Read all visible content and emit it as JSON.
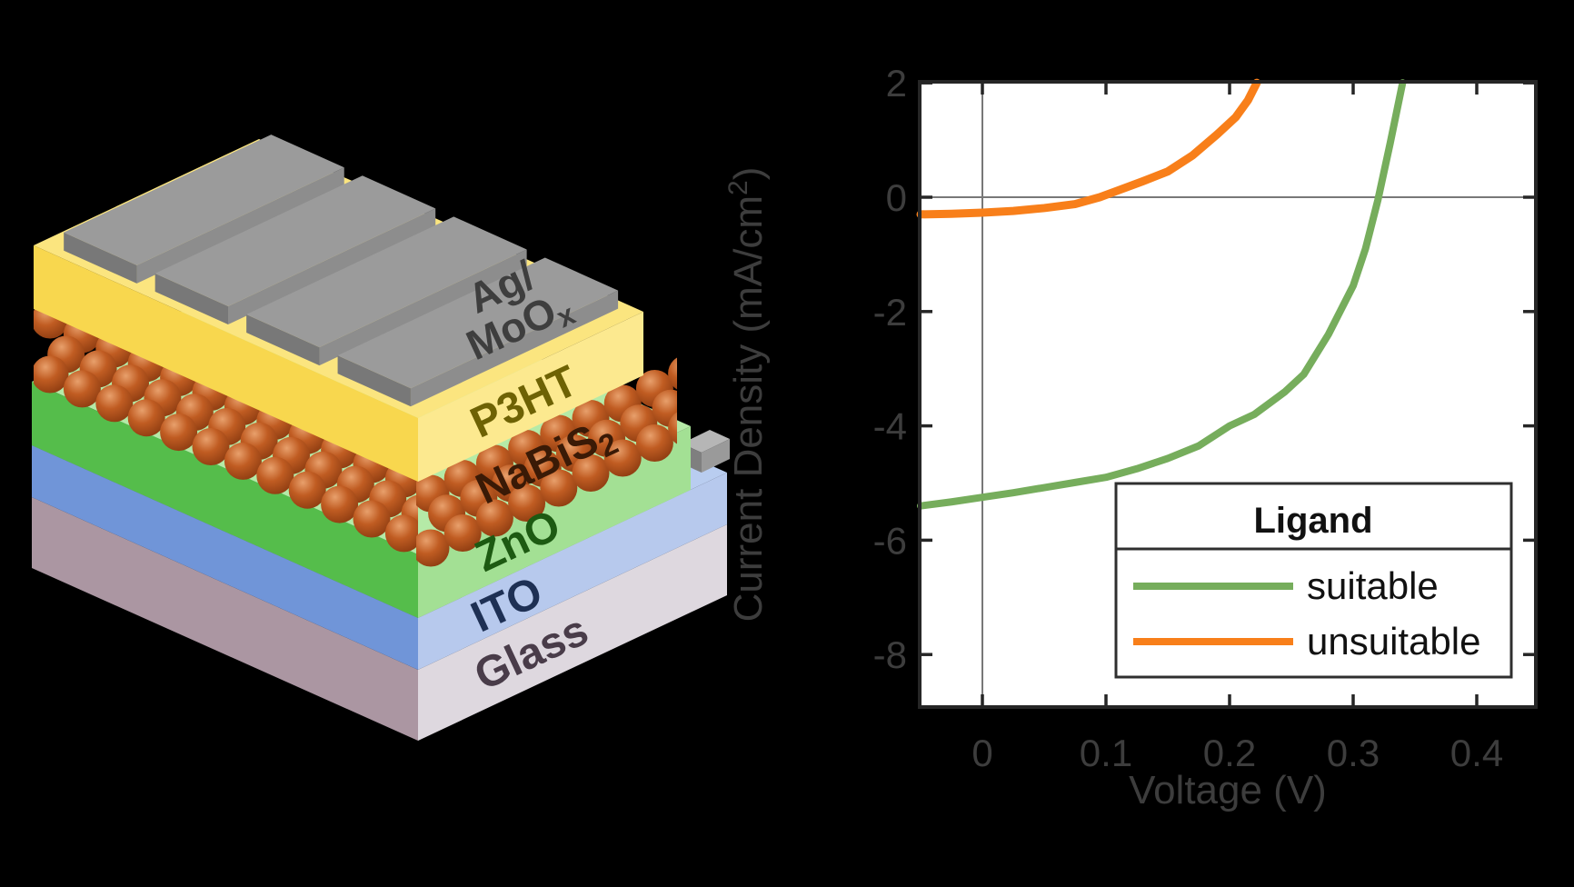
{
  "figure": {
    "background": "#000000",
    "description_left": "solar cell device stack schematic",
    "description_right": "current density versus voltage curves"
  },
  "device_schematic": {
    "electrode": {
      "label_line1": "Ag/",
      "label_line2": "MoO",
      "label_line2_sub": "x",
      "label_color": "#3e3e3e",
      "colors": {
        "top": "#9b9b9b",
        "long": "#8d8d8d",
        "end": "#787878"
      }
    },
    "contact_tab": {
      "colors": {
        "top": "#b6b6b6",
        "front": "#9a9a9a",
        "side": "#7f7f7f"
      }
    },
    "layers": [
      {
        "id": "p3ht",
        "label": "P3HT",
        "label_color": "#6e6204",
        "face_colors": {
          "top": "#fbe57f",
          "left": "#f8d74e",
          "right": "#fce档8f"
        }
      },
      {
        "id": "nabis2",
        "label": "NaBiS",
        "label_sub": "2",
        "label_color": "#3a1a06",
        "sphere_colors": {
          "light": "#e8a06c",
          "mid": "#c05c22",
          "dark": "#8a3a10"
        }
      },
      {
        "id": "zno",
        "label": "ZnO",
        "label_color": "#1d5a12",
        "face_colors": {
          "top": "#b5eaa7",
          "left": "#55bd4b",
          "right": "#a3e094"
        }
      },
      {
        "id": "ito",
        "label": "ITO",
        "label_color": "#1e3054",
        "face_colors": {
          "top": "#b9cdf0",
          "left": "#7095d8",
          "right": "#b7c9ed"
        }
      },
      {
        "id": "glass",
        "label": "Glass",
        "label_color": "#493c49",
        "face_colors": {
          "left": "#ab96a2",
          "right": "#ded8df"
        }
      }
    ]
  },
  "chart_data": {
    "type": "line",
    "title": "",
    "xlabel": "Voltage (V)",
    "ylabel": {
      "prefix": "Current Density (mA/cm",
      "sup": "2",
      "suffix": ")"
    },
    "xlim": [
      -0.05,
      0.448
    ],
    "ylim": [
      -8.92,
      2
    ],
    "grid": false,
    "zero_lines": true,
    "xticks": {
      "values": [
        0,
        0.1,
        0.2,
        0.3,
        0.4
      ],
      "labels": [
        "0",
        "0.1",
        "0.2",
        "0.3",
        "0.4"
      ]
    },
    "yticks": {
      "values": [
        2,
        0,
        -2,
        -4,
        -6,
        -8
      ],
      "labels": [
        "2",
        "0",
        "-2",
        "-4",
        "-6",
        "-8"
      ]
    },
    "axis_color": "#262626",
    "tick_label_color": "#3d3d3d",
    "series": [
      {
        "name": "suitable",
        "color": "#76ad5c",
        "linewidth": 8,
        "x": [
          -0.05,
          -0.025,
          0,
          0.025,
          0.05,
          0.075,
          0.1,
          0.125,
          0.15,
          0.175,
          0.2,
          0.22,
          0.245,
          0.26,
          0.28,
          0.3,
          0.31,
          0.32,
          0.33,
          0.34
        ],
        "y": [
          -5.4,
          -5.33,
          -5.25,
          -5.17,
          -5.08,
          -4.99,
          -4.9,
          -4.75,
          -4.57,
          -4.35,
          -4.0,
          -3.8,
          -3.4,
          -3.1,
          -2.4,
          -1.55,
          -0.9,
          -0.05,
          0.95,
          2.0
        ]
      },
      {
        "name": "unsuitable",
        "color": "#f87f1a",
        "linewidth": 9,
        "x": [
          -0.05,
          -0.025,
          0,
          0.025,
          0.05,
          0.075,
          0.095,
          0.11,
          0.13,
          0.15,
          0.17,
          0.19,
          0.205,
          0.215,
          0.222
        ],
        "y": [
          -0.3,
          -0.29,
          -0.27,
          -0.24,
          -0.19,
          -0.12,
          0.0,
          0.12,
          0.28,
          0.45,
          0.73,
          1.1,
          1.4,
          1.7,
          2.0
        ]
      }
    ],
    "legend": {
      "title": "Ligand",
      "position": "lower right",
      "entries": [
        {
          "label": "suitable",
          "color": "#76ad5c"
        },
        {
          "label": "unsuitable",
          "color": "#f87f1a"
        }
      ]
    }
  }
}
